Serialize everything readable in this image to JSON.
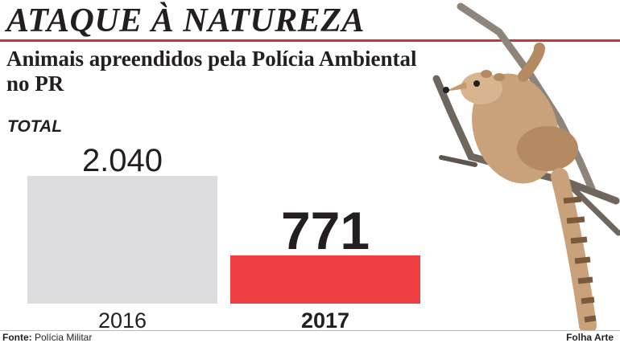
{
  "headline": "ATAQUE À NATUREZA",
  "subtitle": "Animais apreendidos pela Polícia Ambiental no PR",
  "colors": {
    "accent_rule": "#c43a31",
    "bar_2016": "#dcdcde",
    "bar_2017": "#ee3e42",
    "text": "#231f20"
  },
  "illustration": {
    "icon": "coati-on-branch-photo"
  },
  "chart_data": {
    "type": "bar",
    "title": "TOTAL",
    "categories": [
      "2016",
      "2017"
    ],
    "values": [
      2040,
      771
    ],
    "value_labels": [
      "2.040",
      "771"
    ],
    "emphasized_category": "2017",
    "ylim": [
      0,
      2040
    ],
    "xlabel": "",
    "ylabel": "",
    "grid": false,
    "legend": "none"
  },
  "footer": {
    "source_label": "Fonte:",
    "source_text": "Polícia Militar",
    "credit": "Folha Arte"
  }
}
